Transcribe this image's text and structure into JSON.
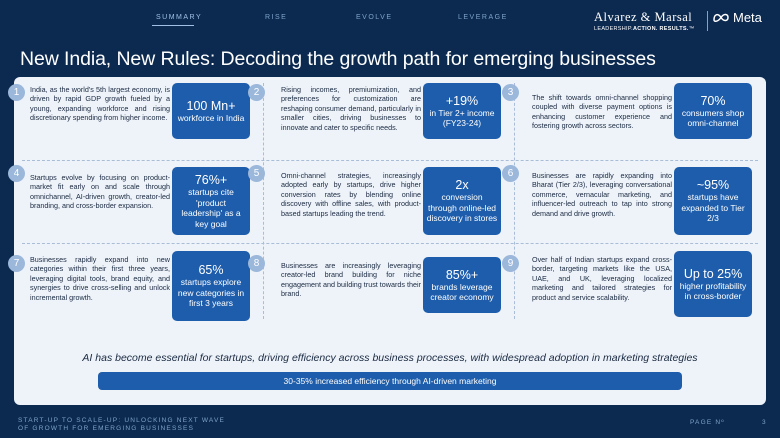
{
  "nav": {
    "items": [
      "SUMMARY",
      "RISE",
      "EVOLVE",
      "LEVERAGE"
    ]
  },
  "brand": {
    "partner": "Alvarez & Marsal",
    "tagline_prefix": "LEADERSHIP.",
    "tagline_bold": "ACTION. RESULTS.",
    "tagline_mark": "™",
    "meta": "Meta"
  },
  "title": "New India, New Rules: Decoding the growth path for emerging businesses",
  "cards": [
    {
      "num": "1",
      "text": "India, as the world's 5th largest economy, is driven by rapid GDP growth fueled by a young, expanding workforce and rising discretionary spending from higher income.",
      "stat_big": "100 Mn+",
      "stat_small": "workforce in India"
    },
    {
      "num": "2",
      "text": "Rising incomes, premiumization, and preferences for customization are reshaping consumer demand, particularly in smaller cities, driving businesses to innovate and cater to specific needs.",
      "stat_big": "+19%",
      "stat_small": "in Tier 2+ income (FY23-24)"
    },
    {
      "num": "3",
      "text": "The shift towards omni-channel shopping coupled with diverse payment options is enhancing customer experience and fostering growth across sectors.",
      "stat_big": "70%",
      "stat_small": "consumers shop omni-channel"
    },
    {
      "num": "4",
      "text": "Startups evolve by focusing on product-market fit early on and scale through omnichannel, AI-driven growth, creator-led branding, and cross-border expansion.",
      "stat_big": "76%+",
      "stat_small": "startups cite 'product leadership' as a key goal"
    },
    {
      "num": "5",
      "text": "Omni-channel strategies, increasingly adopted early by startups, drive higher conversion rates by blending online discovery with offline sales, with product-based startups leading the trend.",
      "stat_big": "2x",
      "stat_small": "conversion through online-led discovery in stores"
    },
    {
      "num": "6",
      "text": "Businesses are rapidly expanding into Bharat (Tier 2/3), leveraging conversational commerce, vernacular marketing, and influencer-led outreach to tap into strong demand and drive growth.",
      "stat_big": "~95%",
      "stat_small": "startups have expanded to Tier 2/3"
    },
    {
      "num": "7",
      "text": "Businesses rapidly expand into new categories within their first three years, leveraging digital tools, brand equity, and synergies to drive cross-selling and unlock incremental growth.",
      "stat_big": "65%",
      "stat_small": "startups explore new categories in first 3 years"
    },
    {
      "num": "8",
      "text": "Businesses are increasingly leveraging creator-led brand building for niche engagement and building trust towards their brand.",
      "stat_big": "85%+",
      "stat_small": "brands leverage creator economy"
    },
    {
      "num": "9",
      "text": "Over half of Indian startups expand cross-border, targeting markets like the USA, UAE, and UK, leveraging localized marketing and tailored strategies for product and service scalability.",
      "stat_big": "Up to 25%",
      "stat_small": "higher profitability in cross-border"
    }
  ],
  "ai": {
    "headline": "AI has become essential for startups, driving efficiency across business processes, with widespread adoption in marketing strategies",
    "bar": "30-35%  increased efficiency through AI-driven marketing"
  },
  "footer": {
    "line1": "START-UP TO SCALE-UP: UNLOCKING NEXT WAVE",
    "line2": "OF GROWTH FOR EMERGING BUSINESSES",
    "page_label": "PAGE Nº",
    "page_num": "3"
  }
}
